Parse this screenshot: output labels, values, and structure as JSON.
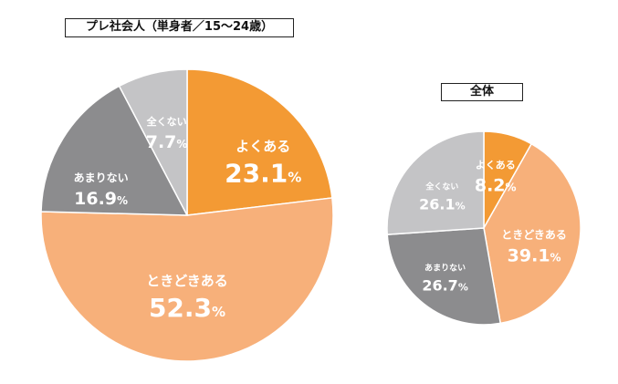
{
  "chart_data": [
    {
      "type": "pie",
      "title": "プレ社会人（単身者／15～24歳）",
      "slices": [
        {
          "label": "よくある",
          "value": 23.1,
          "display": "23.1",
          "unit": "%",
          "color": "#f39a34"
        },
        {
          "label": "ときどきある",
          "value": 52.3,
          "display": "52.3",
          "unit": "%",
          "color": "#f7b07a"
        },
        {
          "label": "あまりない",
          "value": 16.9,
          "display": "16.9",
          "unit": "%",
          "color": "#8c8c8e"
        },
        {
          "label": "全くない",
          "value": 7.7,
          "display": "7.7",
          "unit": "%",
          "color": "#c4c4c6"
        }
      ]
    },
    {
      "type": "pie",
      "title": "全体",
      "slices": [
        {
          "label": "よくある",
          "value": 8.2,
          "display": "8.2",
          "unit": "%",
          "color": "#f39a34"
        },
        {
          "label": "ときどきある",
          "value": 39.1,
          "display": "39.1",
          "unit": "%",
          "color": "#f7b07a"
        },
        {
          "label": "あまりない",
          "value": 26.7,
          "display": "26.7",
          "unit": "%",
          "color": "#8c8c8e"
        },
        {
          "label": "全くない",
          "value": 26.1,
          "display": "26.1",
          "unit": "%",
          "color": "#c4c4c6"
        }
      ]
    }
  ]
}
